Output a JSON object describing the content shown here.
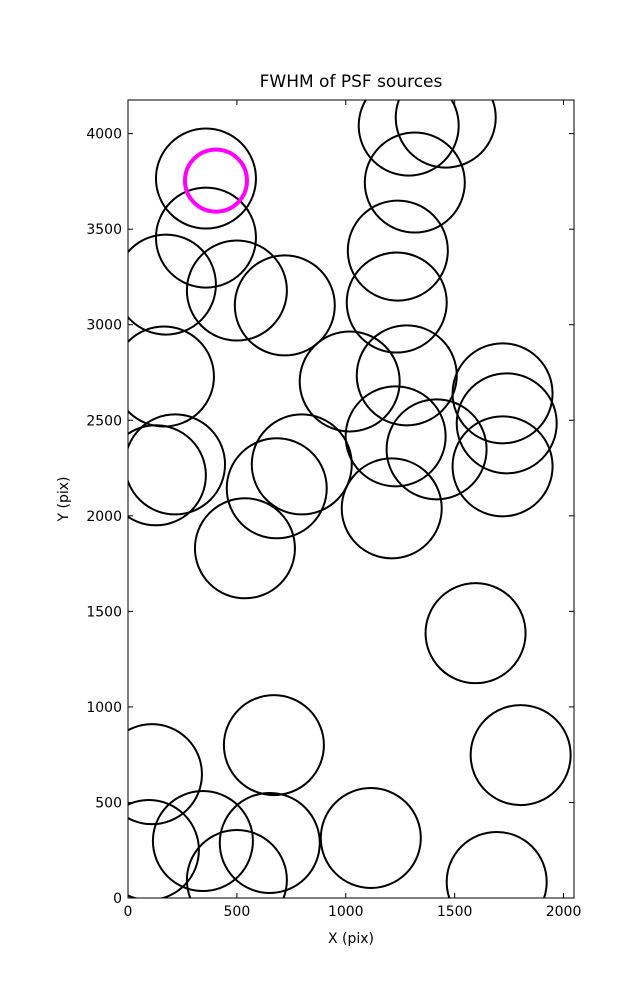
{
  "chart_data": {
    "type": "scatter",
    "title": "FWHM of PSF sources",
    "x_label": "X (pix)",
    "y_label": "Y (pix)",
    "series": [
      {
        "color": "#000000",
        "x": [
          358,
          358,
          174,
          500,
          720,
          165,
          1018,
          1280,
          1239,
          1234,
          1289,
          1459,
          1317,
          1720,
          1739,
          1720,
          1417,
          1229,
          1211,
          216,
          128,
          798,
          683,
          537,
          1596,
          1803,
          670,
          110,
          96,
          344,
          651,
          500,
          1115,
          1693
        ],
        "y": [
          3765,
          3456,
          3210,
          3179,
          3101,
          2729,
          2703,
          2735,
          3388,
          3116,
          4042,
          4084,
          3744,
          2641,
          2484,
          2259,
          2348,
          2416,
          2039,
          2269,
          2212,
          2269,
          2144,
          1830,
          1386,
          748,
          800,
          648,
          251,
          298,
          288,
          94,
          314,
          84
        ]
      },
      {
        "color": "#ff00ff",
        "x": [
          404
        ],
        "y": [
          3754
        ]
      }
    ],
    "xlim": [
      0,
      2048
    ],
    "ylim": [
      0,
      4176
    ],
    "xticks": [
      0,
      500,
      1000,
      1500,
      2000
    ],
    "yticks": [
      0,
      500,
      1000,
      1500,
      2000,
      2500,
      3000,
      3500,
      4000
    ]
  }
}
